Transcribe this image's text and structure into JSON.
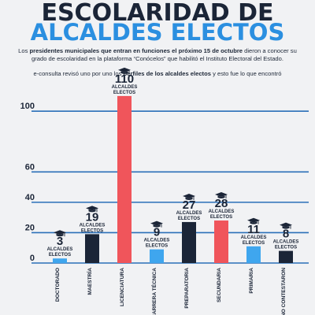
{
  "header": {
    "title_line1": "ESCOLARIDAD DE",
    "title_line2": "ALCALDES ELECTOS"
  },
  "intro": {
    "p1_a": "Los ",
    "p1_b": "presidentes municipales que entran en funciones el próximo 15 de octubre",
    "p1_c": " dieron a conocer su grado de escolaridad en la plataforma “Conócelos” que habilitó el Instituto Electoral del Estado.",
    "p2_a": "e-consulta revisó uno por uno los ",
    "p2_b": "perfiles de los alcaldes electos",
    "p2_c": " y esto fue lo que encontró"
  },
  "colors": {
    "navy": "#1b2537",
    "blue": "#2b8fe0",
    "red": "#f0555b",
    "sky": "#3fa6ee",
    "gridline": "#2a6fb8",
    "background": "#f1f2f4"
  },
  "icon": "graduation-cap-icon",
  "chart_data": {
    "type": "bar",
    "categories": [
      "DOCTORADO",
      "MAESTRÍA",
      "LICENCIATURA",
      "CARRERA TÉCNICA",
      "PREPARATORIA",
      "SECUNDARIA",
      "PRIMARIA",
      "NO CONTESTARON"
    ],
    "values": [
      3,
      19,
      110,
      9,
      27,
      28,
      11,
      8
    ],
    "bar_colors": [
      "#3fa6ee",
      "#1b2537",
      "#f0555b",
      "#3fa6ee",
      "#1b2537",
      "#f0555b",
      "#3fa6ee",
      "#1b2537"
    ],
    "value_unit_label": "ALCALDES ELECTOS",
    "y_ticks": [
      0,
      20,
      40,
      60,
      100
    ],
    "ylim": [
      0,
      110
    ],
    "grid": true,
    "title": "",
    "xlabel": "",
    "ylabel": ""
  }
}
